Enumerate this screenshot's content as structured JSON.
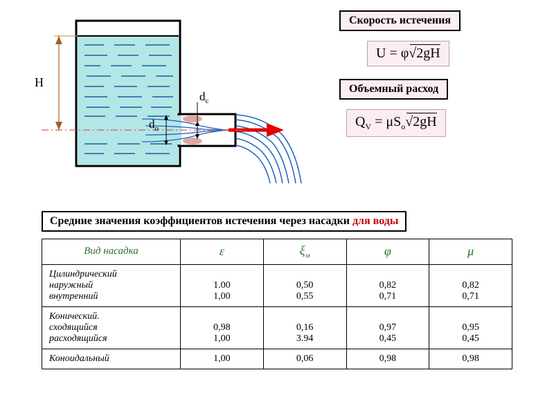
{
  "diagram": {
    "labels": {
      "H": "H",
      "dc": "d",
      "dc_sub": "c",
      "do": "d",
      "do_sub": "o"
    },
    "colors": {
      "water_fill": "#b3e6e6",
      "tank_border": "#000000",
      "wave_line": "#1060a0",
      "flow_stroke": "#2060c0",
      "arrow_red": "#e00000",
      "dash_red": "#d06050",
      "dim_line": "#c08040",
      "dim_arrow": "#a06030",
      "vena": "#d06050"
    }
  },
  "right": {
    "box1": "Скорость истечения",
    "formula1_html": "U = φ√(2gH)",
    "box2": "Объемный расход",
    "formula2_html": "Q_V = μS_o√(2gH)"
  },
  "table_title": {
    "black": "Средние значения коэффициентов истечения через насадки ",
    "red": "для воды"
  },
  "table": {
    "headers": [
      "Вид насадка",
      "ε",
      "ξ_м",
      "φ",
      "μ"
    ],
    "rows": [
      {
        "name": [
          "Цилиндрический",
          "наружный",
          "внутренний"
        ],
        "eps": [
          "",
          "1.00",
          "1,00"
        ],
        "xi": [
          "",
          "0,50",
          "0,55"
        ],
        "phi": [
          "",
          "0,82",
          "0,71"
        ],
        "mu": [
          "",
          "0,82",
          "0,71"
        ]
      },
      {
        "name": [
          "Конический.",
          "сходящийся",
          "расходящийся"
        ],
        "eps": [
          "",
          "0,98",
          "1,00"
        ],
        "xi": [
          "",
          "0,16",
          "3.94"
        ],
        "phi": [
          "",
          "0,97",
          "0,45"
        ],
        "mu": [
          "",
          "0,95",
          "0,45"
        ]
      },
      {
        "name": [
          "Коноидальный"
        ],
        "eps": [
          "1,00"
        ],
        "xi": [
          "0,06"
        ],
        "phi": [
          "0,98"
        ],
        "mu": [
          "0,98"
        ]
      }
    ]
  }
}
